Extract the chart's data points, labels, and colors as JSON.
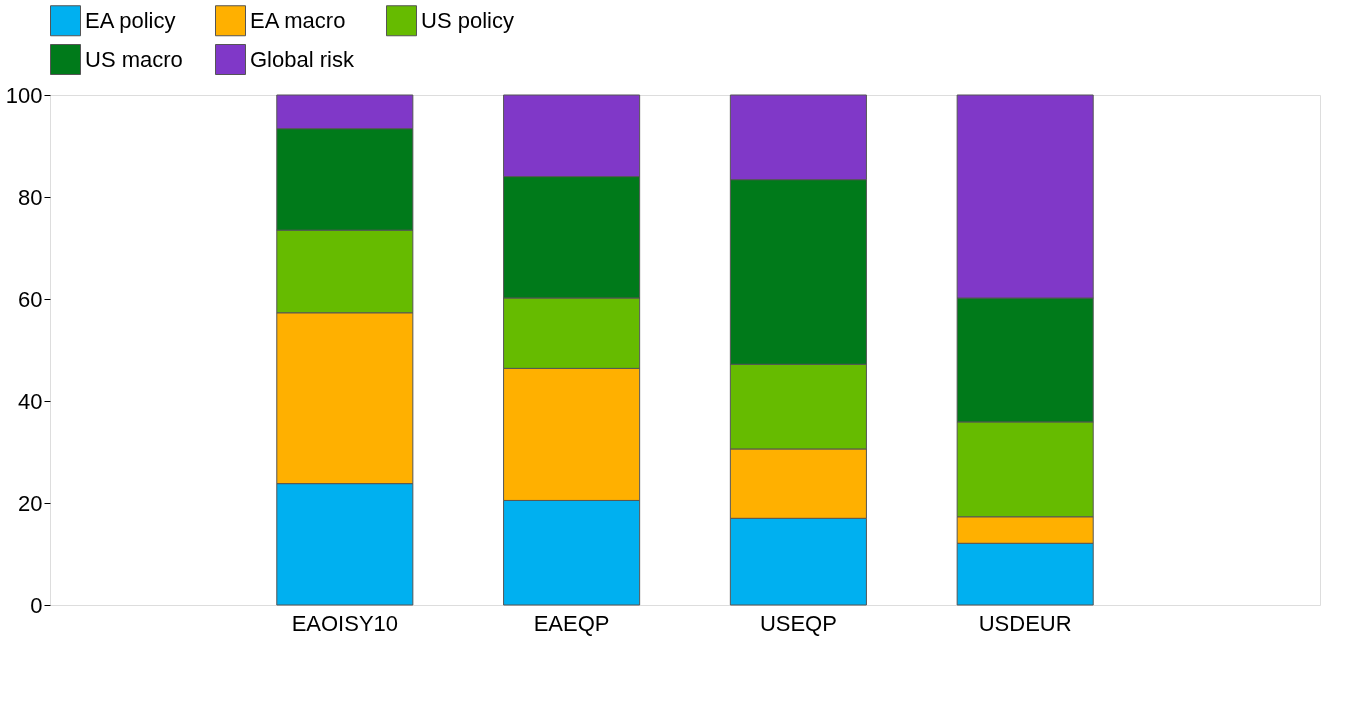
{
  "chart_data": {
    "type": "bar",
    "stacked": true,
    "categories": [
      "EAOISY10",
      "EAEQP",
      "USEQP",
      "USDEUR"
    ],
    "series": [
      {
        "name": "EA policy",
        "color": "#00b0f0",
        "values": [
          23.8,
          20.5,
          17.0,
          12.1
        ]
      },
      {
        "name": "EA macro",
        "color": "#ffb000",
        "values": [
          33.5,
          25.9,
          13.6,
          5.2
        ]
      },
      {
        "name": "US policy",
        "color": "#66bb00",
        "values": [
          16.2,
          13.8,
          16.6,
          18.6
        ]
      },
      {
        "name": "US macro",
        "color": "#007a1a",
        "values": [
          19.9,
          23.8,
          36.2,
          24.3
        ]
      },
      {
        "name": "Global risk",
        "color": "#8038c8",
        "values": [
          6.6,
          16.0,
          16.6,
          39.8
        ]
      }
    ],
    "ylim": [
      0,
      100
    ],
    "yticks": [
      0,
      20,
      40,
      60,
      80,
      100
    ],
    "grid": false,
    "legend": "top"
  }
}
